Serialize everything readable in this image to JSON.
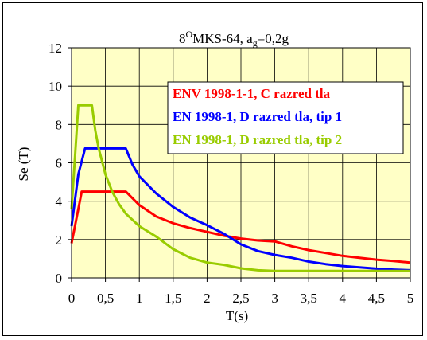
{
  "chart_data": {
    "type": "line",
    "title": {
      "prefix": "8",
      "sup": "O",
      "main": "MKS-64, a",
      "sub": "g",
      "suffix": "=0,2g"
    },
    "xlabel": "T(s)",
    "ylabel": "Se (T)",
    "xlim": [
      0,
      5
    ],
    "ylim": [
      0,
      12
    ],
    "x_ticks": [
      0,
      0.5,
      1,
      1.5,
      2,
      2.5,
      3,
      3.5,
      4,
      4.5,
      5
    ],
    "x_tick_labels": [
      "0",
      "0,5",
      "1",
      "1,5",
      "2",
      "2,5",
      "3",
      "3,5",
      "4",
      "4,5",
      "5"
    ],
    "y_ticks": [
      0,
      2,
      4,
      6,
      8,
      10,
      12
    ],
    "y_tick_labels": [
      "0",
      "2",
      "4",
      "6",
      "8",
      "10",
      "12"
    ],
    "grid": true,
    "plot_background": "#ffffc6",
    "legend_position": "right",
    "series": [
      {
        "name": "ENV 1998-1-1, C razred tla",
        "color": "#ff0000",
        "points": [
          [
            0,
            1.8
          ],
          [
            0.15,
            4.5
          ],
          [
            0.2,
            4.5
          ],
          [
            0.4,
            4.5
          ],
          [
            0.6,
            4.5
          ],
          [
            0.8,
            4.5
          ],
          [
            1.0,
            3.8
          ],
          [
            1.25,
            3.2
          ],
          [
            1.5,
            2.85
          ],
          [
            1.75,
            2.6
          ],
          [
            2.0,
            2.4
          ],
          [
            2.25,
            2.2
          ],
          [
            2.5,
            2.05
          ],
          [
            2.75,
            1.95
          ],
          [
            3.0,
            1.9
          ],
          [
            3.25,
            1.65
          ],
          [
            3.5,
            1.45
          ],
          [
            3.75,
            1.3
          ],
          [
            4.0,
            1.15
          ],
          [
            4.25,
            1.05
          ],
          [
            4.5,
            0.95
          ],
          [
            4.75,
            0.88
          ],
          [
            5.0,
            0.8
          ]
        ]
      },
      {
        "name": "EN 1998-1, D razred tla, tip 1",
        "color": "#0000ff",
        "points": [
          [
            0,
            2.7
          ],
          [
            0.1,
            5.4
          ],
          [
            0.2,
            6.75
          ],
          [
            0.4,
            6.75
          ],
          [
            0.6,
            6.75
          ],
          [
            0.8,
            6.75
          ],
          [
            0.9,
            5.9
          ],
          [
            1.0,
            5.3
          ],
          [
            1.25,
            4.4
          ],
          [
            1.5,
            3.7
          ],
          [
            1.75,
            3.15
          ],
          [
            2.0,
            2.75
          ],
          [
            2.25,
            2.3
          ],
          [
            2.5,
            1.75
          ],
          [
            2.75,
            1.4
          ],
          [
            3.0,
            1.2
          ],
          [
            3.25,
            1.05
          ],
          [
            3.5,
            0.85
          ],
          [
            3.75,
            0.72
          ],
          [
            4.0,
            0.62
          ],
          [
            4.25,
            0.55
          ],
          [
            4.5,
            0.48
          ],
          [
            4.75,
            0.43
          ],
          [
            5.0,
            0.4
          ]
        ]
      },
      {
        "name": "EN 1998-1, D razred tla, tip 2",
        "color": "#99cc00",
        "points": [
          [
            0,
            3.6
          ],
          [
            0.05,
            6.3
          ],
          [
            0.1,
            9.0
          ],
          [
            0.15,
            9.0
          ],
          [
            0.2,
            9.0
          ],
          [
            0.3,
            9.0
          ],
          [
            0.35,
            7.7
          ],
          [
            0.4,
            6.75
          ],
          [
            0.5,
            5.4
          ],
          [
            0.6,
            4.5
          ],
          [
            0.7,
            3.85
          ],
          [
            0.8,
            3.35
          ],
          [
            1.0,
            2.7
          ],
          [
            1.25,
            2.15
          ],
          [
            1.5,
            1.5
          ],
          [
            1.75,
            1.05
          ],
          [
            2.0,
            0.8
          ],
          [
            2.25,
            0.68
          ],
          [
            2.5,
            0.5
          ],
          [
            2.75,
            0.4
          ],
          [
            3.0,
            0.36
          ],
          [
            3.5,
            0.36
          ],
          [
            4.0,
            0.36
          ],
          [
            4.5,
            0.36
          ],
          [
            5.0,
            0.36
          ]
        ]
      }
    ]
  }
}
